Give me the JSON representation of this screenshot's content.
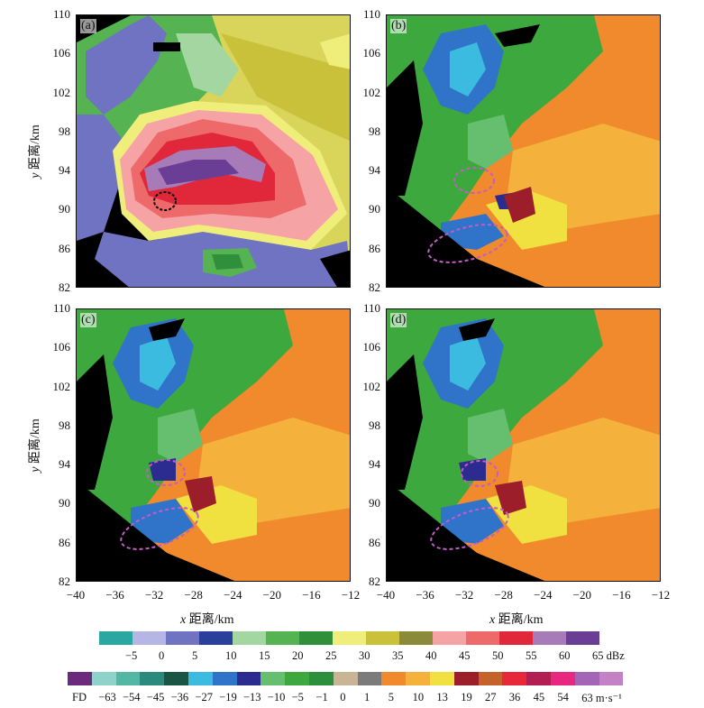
{
  "panels": [
    {
      "id": "a",
      "label": "(a)",
      "kind": "reflectivity"
    },
    {
      "id": "b",
      "label": "(b)",
      "kind": "velocity"
    },
    {
      "id": "c",
      "label": "(c)",
      "kind": "velocity"
    },
    {
      "id": "d",
      "label": "(d)",
      "kind": "velocity"
    }
  ],
  "axes": {
    "y_label_var": "y",
    "y_label_text": " 距离/km",
    "x_label_var": "x",
    "x_label_text": " 距离/km",
    "y_ticks": [
      "110",
      "106",
      "102",
      "98",
      "94",
      "90",
      "86",
      "82"
    ],
    "x_ticks": [
      "−40",
      "−36",
      "−32",
      "−28",
      "−24",
      "−20",
      "−16",
      "−12"
    ],
    "xlim": [
      -40,
      -12
    ],
    "ylim": [
      82,
      110
    ]
  },
  "reflectivity_legend": {
    "colors": [
      "#2aa7a0",
      "#b6b6e4",
      "#6f73c2",
      "#2a3f9c",
      "#a3d6a0",
      "#55b451",
      "#2f8f3a",
      "#f0ee7a",
      "#c9c13a",
      "#8a8a3a",
      "#f6a3a6",
      "#ee6a6a",
      "#e0283a",
      "#a77bb8",
      "#6b3e96"
    ],
    "labels": [
      "−5",
      "0",
      "5",
      "10",
      "15",
      "20",
      "25",
      "30",
      "35",
      "40",
      "45",
      "50",
      "55",
      "60",
      "65 dBz"
    ]
  },
  "velocity_legend": {
    "colors": [
      "#6b2a7c",
      "#8fd2c9",
      "#52b7a3",
      "#2a8a7c",
      "#1a5443",
      "#3bbbe0",
      "#2f74c8",
      "#2c2b8f",
      "#66be6f",
      "#3da83e",
      "#2b8f3b",
      "#c7b596",
      "#7b7b7b",
      "#f08a2c",
      "#f4b23c",
      "#f0e040",
      "#9b1e2a",
      "#c4622a",
      "#e6283a",
      "#b31e52",
      "#e8287e",
      "#a565b5",
      "#c381c6"
    ],
    "labels": [
      "FD",
      "−63",
      "−54",
      "−45",
      "−36",
      "−27",
      "−19",
      "−13",
      "−10",
      "−5",
      "−1",
      "0",
      "1",
      "5",
      "10",
      "13",
      "19",
      "27",
      "36",
      "45",
      "54",
      "63 m·s⁻¹"
    ]
  },
  "colors": {
    "background": "#000000",
    "annotation_magenta": "#c45cc8",
    "annotation_black": "#000000"
  }
}
